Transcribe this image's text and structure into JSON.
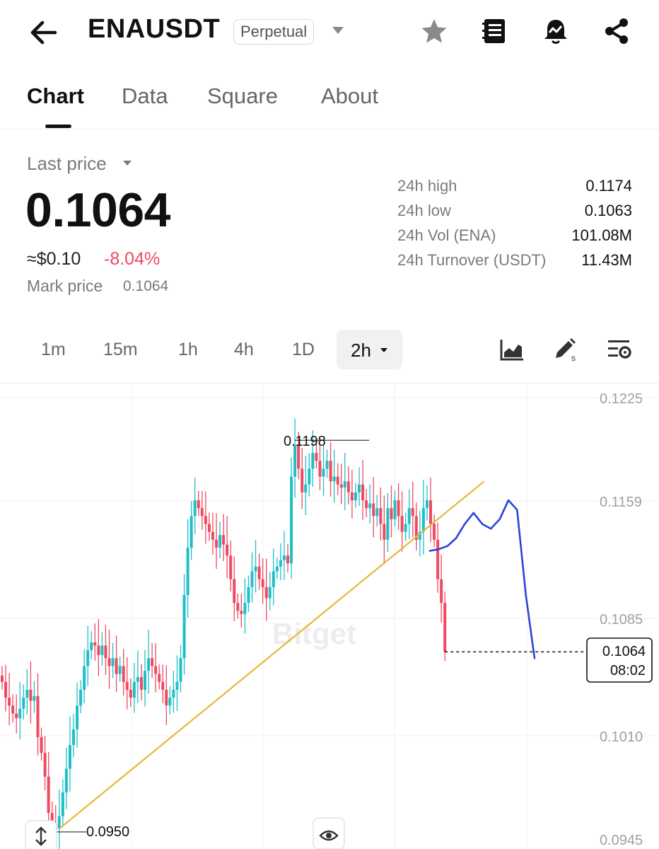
{
  "header": {
    "symbol": "ENAUSDT",
    "contract_type": "Perpetual",
    "icons": [
      "back-arrow-icon",
      "star-icon",
      "notebook-icon",
      "price-alert-bell-icon",
      "share-icon"
    ]
  },
  "tabs": [
    {
      "label": "Chart",
      "active": true
    },
    {
      "label": "Data",
      "active": false
    },
    {
      "label": "Square",
      "active": false
    },
    {
      "label": "About",
      "active": false
    }
  ],
  "ticker": {
    "last_price_label": "Last price",
    "last_price": "0.1064",
    "usd_equiv": "≈$0.10",
    "change_pct": "-8.04%",
    "mark_price_label": "Mark price",
    "mark_price": "0.1064",
    "stats": [
      {
        "label": "24h high",
        "value": "0.1174"
      },
      {
        "label": "24h low",
        "value": "0.1063"
      },
      {
        "label": "24h Vol (ENA)",
        "value": "101.08M"
      },
      {
        "label": "24h Turnover (USDT)",
        "value": "11.43M"
      }
    ]
  },
  "intervals": [
    "1m",
    "15m",
    "1h",
    "4h",
    "1D"
  ],
  "selected_interval": "2h",
  "chart_tools": [
    "indicator-chart-icon",
    "drawing-pen-icon",
    "chart-settings-icon"
  ],
  "colors": {
    "up": "#1fbfc9",
    "down": "#ef4a60",
    "trendline": "#e4b83a",
    "drawing": "#2a43d9"
  },
  "chart_data": {
    "type": "candlestick",
    "interval": "2h",
    "y_ticks": [
      "0.1225",
      "0.1159",
      "0.1085",
      "0.1010",
      "0.0945"
    ],
    "ylim": [
      0.0945,
      0.1225
    ],
    "high_marker": "0.1198",
    "low_marker": "0.0950",
    "current_price_tag": "0.1064",
    "countdown": "08:02",
    "watermark": "Bitget",
    "closes": [
      0.1045,
      0.1035,
      0.103,
      0.1025,
      0.1022,
      0.1028,
      0.1035,
      0.104,
      0.1033,
      0.1036,
      0.101,
      0.1,
      0.0985,
      0.0962,
      0.0955,
      0.0952,
      0.096,
      0.0975,
      0.099,
      0.1005,
      0.1015,
      0.103,
      0.104,
      0.1055,
      0.1065,
      0.107,
      0.1068,
      0.1062,
      0.1068,
      0.106,
      0.1055,
      0.106,
      0.105,
      0.1055,
      0.1045,
      0.104,
      0.1035,
      0.1045,
      0.1048,
      0.104,
      0.1052,
      0.106,
      0.1055,
      0.105,
      0.1045,
      0.104,
      0.103,
      0.1035,
      0.104,
      0.1045,
      0.106,
      0.11,
      0.113,
      0.115,
      0.116,
      0.1155,
      0.115,
      0.1145,
      0.114,
      0.1135,
      0.113,
      0.1138,
      0.1132,
      0.1125,
      0.111,
      0.1095,
      0.109,
      0.1088,
      0.1095,
      0.1105,
      0.1115,
      0.1118,
      0.111,
      0.1105,
      0.1098,
      0.1105,
      0.1115,
      0.1118,
      0.1122,
      0.1125,
      0.112,
      0.1175,
      0.1195,
      0.118,
      0.1165,
      0.117,
      0.118,
      0.119,
      0.1185,
      0.1175,
      0.118,
      0.1185,
      0.1172,
      0.1175,
      0.117,
      0.1168,
      0.1172,
      0.1165,
      0.116,
      0.1165,
      0.117,
      0.116,
      0.1155,
      0.1158,
      0.115,
      0.1155,
      0.1145,
      0.1135,
      0.1155,
      0.1148,
      0.116,
      0.115,
      0.114,
      0.1145,
      0.1155,
      0.115,
      0.1135,
      0.114,
      0.1155,
      0.116,
      0.1145,
      0.1135,
      0.111,
      0.1095,
      0.1064
    ],
    "trendline": {
      "from": {
        "candle": 16,
        "price": 0.0952
      },
      "to": {
        "candle": 135,
        "price": 0.1172
      }
    },
    "drawn_projection_prices": [
      0.1128,
      0.1129,
      0.1131,
      0.1136,
      0.1145,
      0.1152,
      0.1145,
      0.1142,
      0.1148,
      0.116,
      0.1154,
      0.11,
      0.106
    ]
  }
}
